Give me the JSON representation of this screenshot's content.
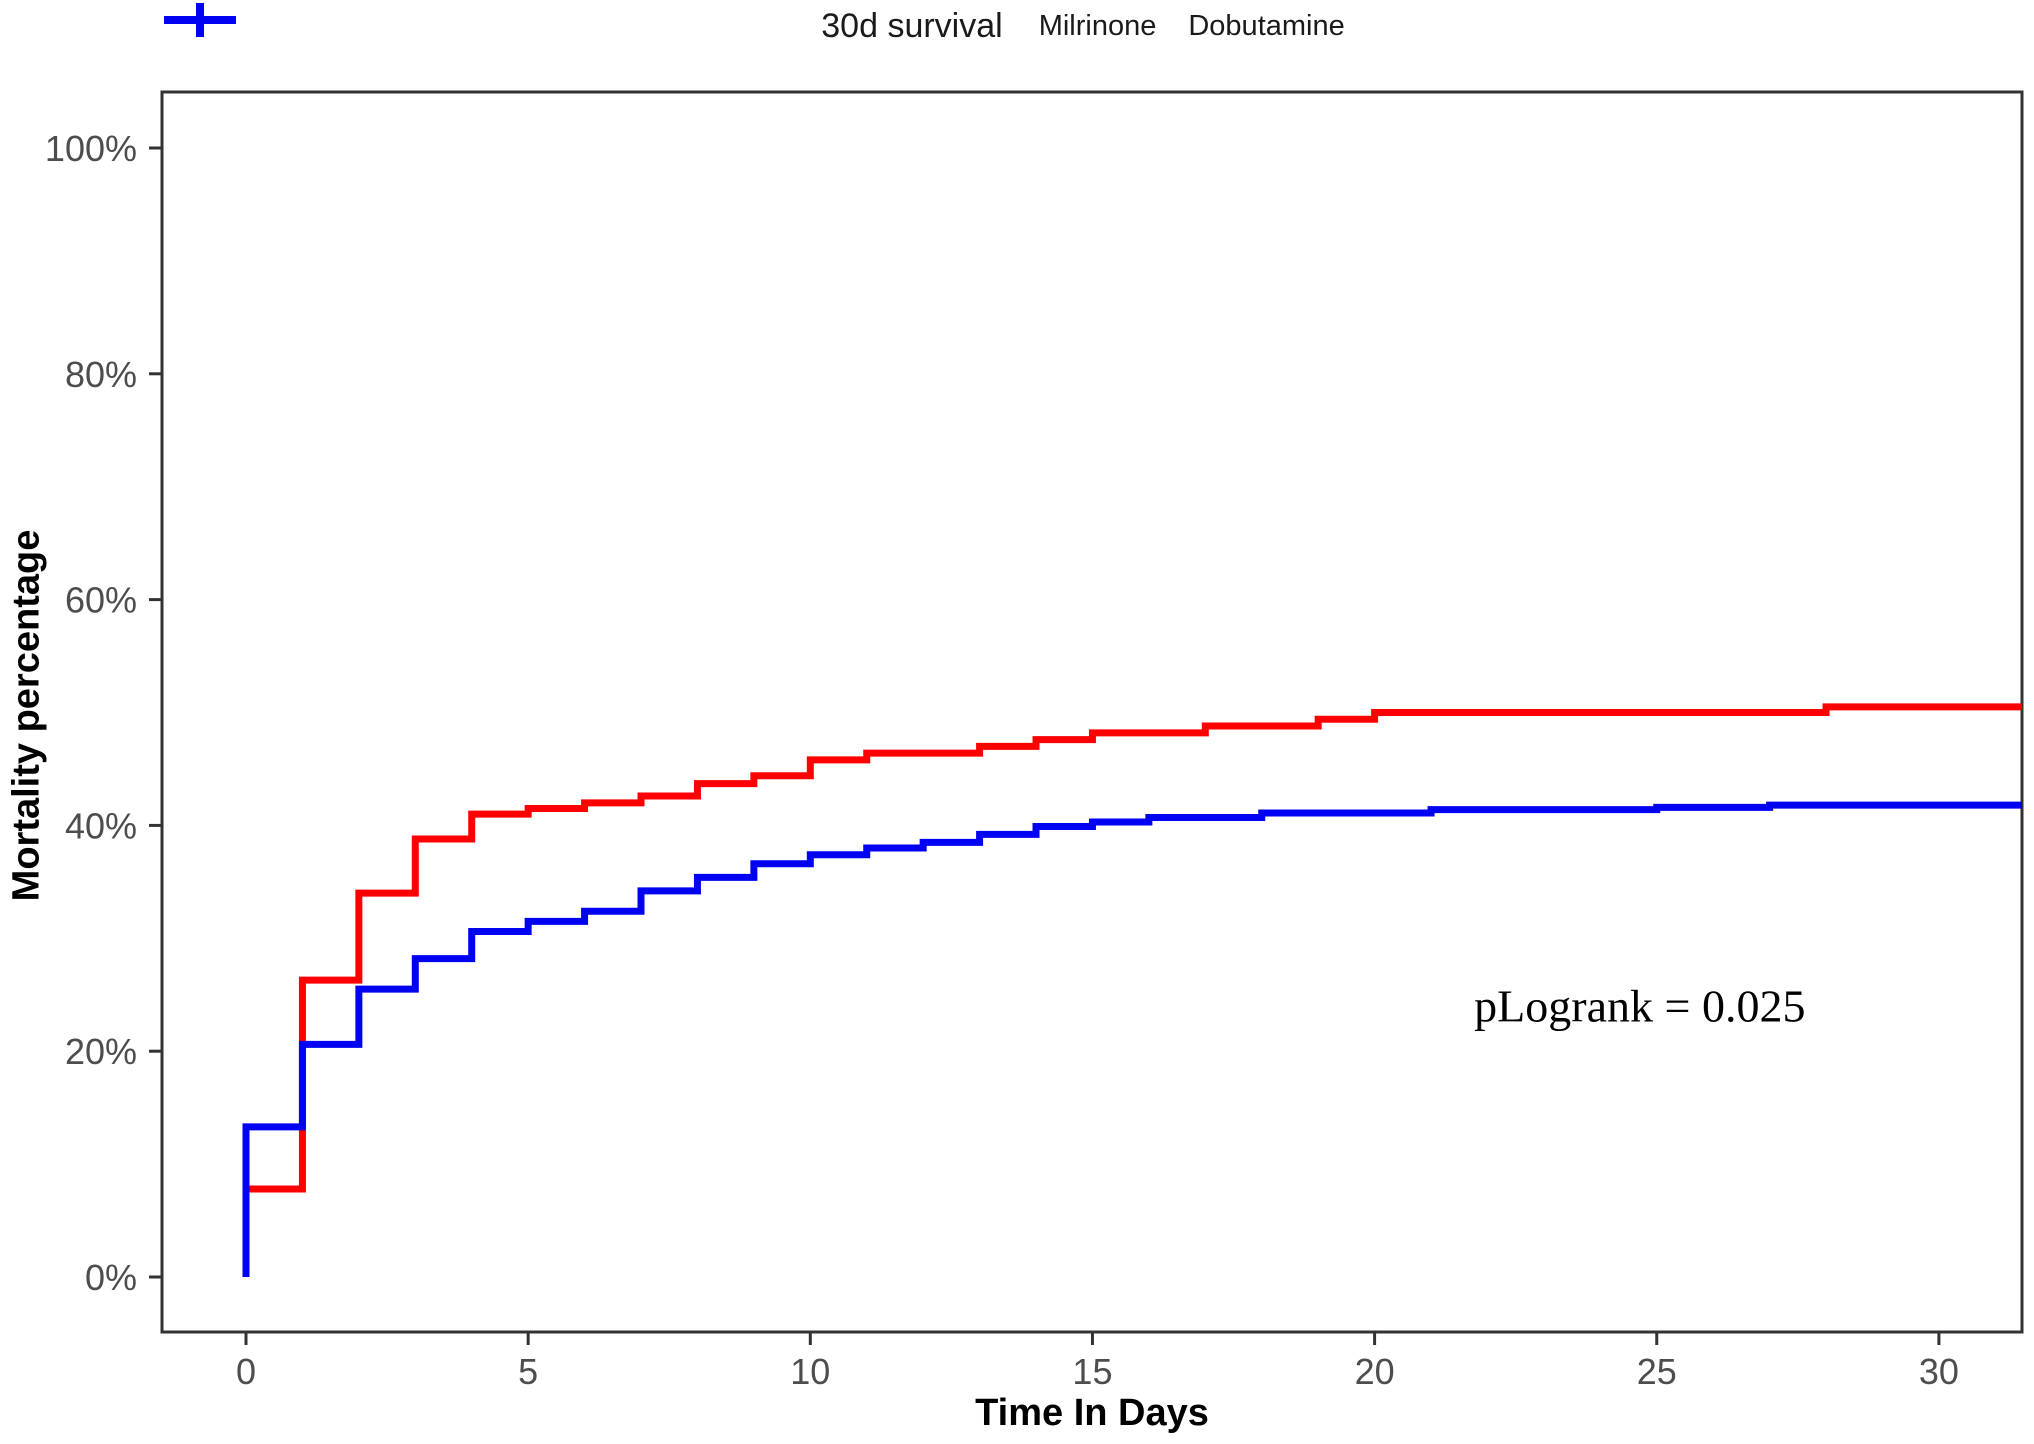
{
  "legend": {
    "title": "30d survival"
  },
  "chart_data": {
    "type": "line",
    "subtype": "kaplan-meier-step-mortality",
    "title": "30d survival",
    "xlabel": "Time In Days",
    "ylabel": "Mortality percentage",
    "xlim": [
      0,
      31.5
    ],
    "ylim": [
      0,
      100
    ],
    "x_ticks": [
      0,
      5,
      10,
      15,
      20,
      25,
      30
    ],
    "y_ticks": [
      0,
      20,
      40,
      60,
      80,
      100
    ],
    "y_tick_labels": [
      "0%",
      "20%",
      "40%",
      "60%",
      "80%",
      "100%"
    ],
    "grid": false,
    "legend_position": "top-center",
    "panel_border": true,
    "x_end": 31.47,
    "series": [
      {
        "name": "Milrinone",
        "color": "#ff0000",
        "start": [
          0,
          0
        ],
        "steps": [
          [
            0,
            7.8
          ],
          [
            1,
            26.3
          ],
          [
            2,
            34.0
          ],
          [
            3,
            38.8
          ],
          [
            4,
            41.0
          ],
          [
            5,
            41.5
          ],
          [
            6,
            42.0
          ],
          [
            7,
            42.6
          ],
          [
            8,
            43.7
          ],
          [
            9,
            44.4
          ],
          [
            10,
            45.8
          ],
          [
            11,
            46.4
          ],
          [
            13,
            47.0
          ],
          [
            14,
            47.6
          ],
          [
            15,
            48.2
          ],
          [
            17,
            48.8
          ],
          [
            19,
            49.4
          ],
          [
            20,
            50.0
          ],
          [
            28,
            50.5
          ]
        ]
      },
      {
        "name": "Dobutamine",
        "color": "#0202f2",
        "start": [
          0,
          0
        ],
        "steps": [
          [
            0,
            13.3
          ],
          [
            1,
            20.6
          ],
          [
            2,
            25.5
          ],
          [
            3,
            28.2
          ],
          [
            4,
            30.6
          ],
          [
            5,
            31.5
          ],
          [
            6,
            32.4
          ],
          [
            7,
            34.2
          ],
          [
            8,
            35.4
          ],
          [
            9,
            36.6
          ],
          [
            10,
            37.4
          ],
          [
            11,
            38.0
          ],
          [
            12,
            38.5
          ],
          [
            13,
            39.2
          ],
          [
            14,
            39.9
          ],
          [
            15,
            40.3
          ],
          [
            16,
            40.7
          ],
          [
            18,
            41.1
          ],
          [
            21,
            41.4
          ],
          [
            25,
            41.6
          ],
          [
            27,
            41.8
          ]
        ]
      }
    ],
    "annotation": {
      "text": "pLogrank = 0.025",
      "x_day": 24.7,
      "y_percent": 24
    }
  }
}
